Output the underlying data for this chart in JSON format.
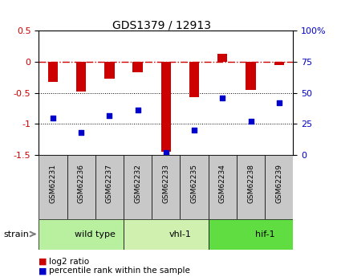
{
  "title": "GDS1379 / 12913",
  "samples": [
    "GSM62231",
    "GSM62236",
    "GSM62237",
    "GSM62232",
    "GSM62233",
    "GSM62235",
    "GSM62234",
    "GSM62238",
    "GSM62239"
  ],
  "log2_ratio": [
    -0.32,
    -0.48,
    -0.27,
    -0.17,
    -1.45,
    -0.57,
    0.12,
    -0.45,
    -0.05
  ],
  "percentile_rank": [
    30,
    18,
    32,
    36,
    2,
    20,
    46,
    27,
    42
  ],
  "groups": [
    {
      "label": "wild type",
      "start": 0,
      "end": 3,
      "color": "#b8f0a0"
    },
    {
      "label": "vhl-1",
      "start": 3,
      "end": 6,
      "color": "#d0f0b0"
    },
    {
      "label": "hif-1",
      "start": 6,
      "end": 9,
      "color": "#60dd40"
    }
  ],
  "bar_color": "#cc0000",
  "point_color": "#0000cc",
  "ylim_left": [
    -1.5,
    0.5
  ],
  "ylim_right": [
    0,
    100
  ],
  "hline_zero_color": "#cc0000",
  "hline_dotted_color": "#000000",
  "background_color": "#ffffff",
  "sample_box_color": "#c8c8c8",
  "strain_label": "strain",
  "legend_bar": "log2 ratio",
  "legend_point": "percentile rank within the sample",
  "yticks_left": [
    0.5,
    0,
    -0.5,
    -1,
    -1.5
  ],
  "ytick_labels_left": [
    "0.5",
    "0",
    "-0.5",
    "-1",
    "-1.5"
  ],
  "yticks_right": [
    100,
    75,
    50,
    25,
    0
  ],
  "ytick_labels_right": [
    "100%",
    "75",
    "50",
    "25",
    "0"
  ]
}
